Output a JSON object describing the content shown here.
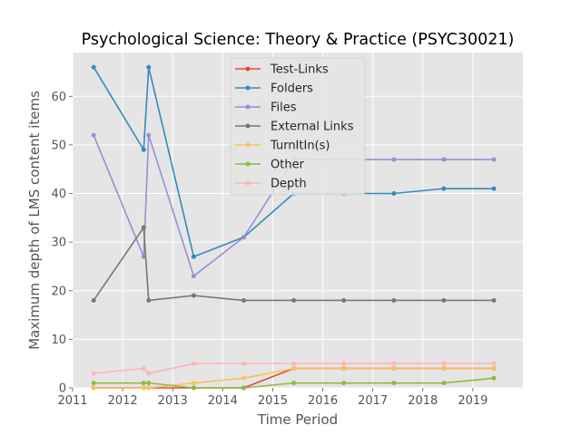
{
  "chart_data": {
    "type": "line",
    "title": "Psychological Science: Theory & Practice (PSYC30021)",
    "xlabel": "Time Period",
    "ylabel": "Maximum depth of LMS content items",
    "xlim": [
      2011,
      2020
    ],
    "ylim": [
      0,
      69
    ],
    "xticks": [
      2011,
      2012,
      2013,
      2014,
      2015,
      2016,
      2017,
      2018,
      2019
    ],
    "yticks": [
      0,
      10,
      20,
      30,
      40,
      50,
      60
    ],
    "grid": true,
    "legend_position": "top-center",
    "series": [
      {
        "name": "Test-Links",
        "color": "#E24A33",
        "x": [
          2011.42,
          2012.42,
          2012.52,
          2013.42,
          2014.42,
          2015.42,
          2016.42,
          2017.42,
          2018.42,
          2019.42
        ],
        "y": [
          0,
          0,
          0,
          0,
          0,
          4,
          4,
          4,
          4,
          4
        ]
      },
      {
        "name": "Folders",
        "color": "#348ABD",
        "x": [
          2011.42,
          2012.42,
          2012.52,
          2013.42,
          2014.42,
          2015.42,
          2016.42,
          2017.42,
          2018.42,
          2019.42
        ],
        "y": [
          66,
          49,
          66,
          27,
          31,
          40,
          40,
          40,
          41,
          41
        ]
      },
      {
        "name": "Files",
        "color": "#988ED5",
        "x": [
          2011.42,
          2012.42,
          2012.52,
          2013.42,
          2014.42,
          2015.42,
          2016.42,
          2017.42,
          2018.42,
          2019.42
        ],
        "y": [
          52,
          27,
          52,
          23,
          31,
          47,
          47,
          47,
          47,
          47
        ]
      },
      {
        "name": "External Links",
        "color": "#777777",
        "x": [
          2011.42,
          2012.42,
          2012.52,
          2013.42,
          2014.42,
          2015.42,
          2016.42,
          2017.42,
          2018.42,
          2019.42
        ],
        "y": [
          18,
          33,
          18,
          19,
          18,
          18,
          18,
          18,
          18,
          18
        ]
      },
      {
        "name": "TurnItIn(s)",
        "color": "#FBC15E",
        "x": [
          2011.42,
          2012.42,
          2012.52,
          2013.42,
          2014.42,
          2015.42,
          2016.42,
          2017.42,
          2018.42,
          2019.42
        ],
        "y": [
          0,
          0,
          0,
          1,
          2,
          4,
          4,
          4,
          4,
          4
        ]
      },
      {
        "name": "Other",
        "color": "#8EBA42",
        "x": [
          2011.42,
          2012.42,
          2012.52,
          2013.42,
          2014.42,
          2015.42,
          2016.42,
          2017.42,
          2018.42,
          2019.42
        ],
        "y": [
          1,
          1,
          1,
          0,
          0,
          1,
          1,
          1,
          1,
          2
        ]
      },
      {
        "name": "Depth",
        "color": "#FFB5B8",
        "x": [
          2011.42,
          2012.42,
          2012.52,
          2013.42,
          2014.42,
          2015.42,
          2016.42,
          2017.42,
          2018.42,
          2019.42
        ],
        "y": [
          3,
          4,
          3,
          5,
          5,
          5,
          5,
          5,
          5,
          5
        ]
      }
    ]
  }
}
